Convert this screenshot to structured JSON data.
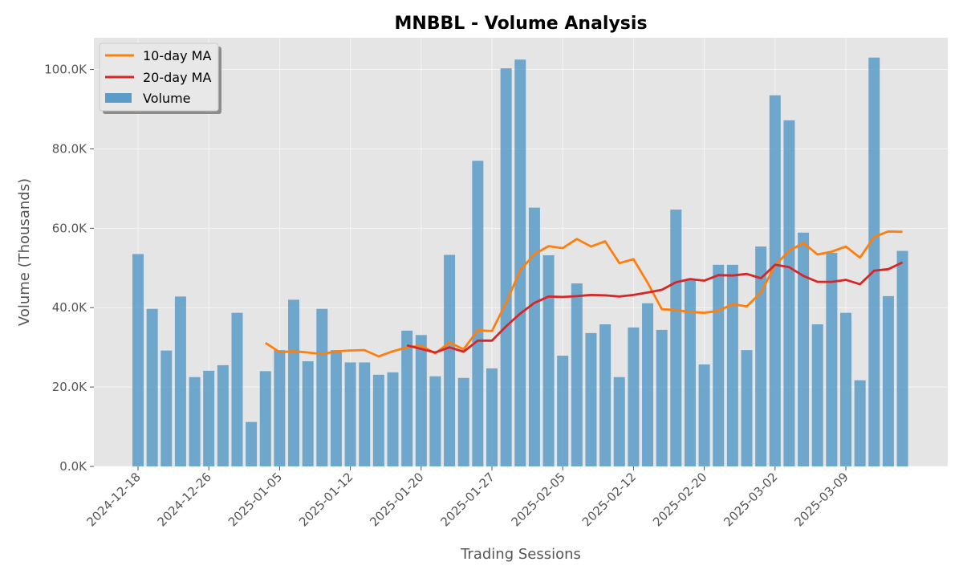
{
  "chart_data": {
    "type": "bar",
    "title": "MNBBL - Volume Analysis",
    "xlabel": "Trading Sessions",
    "ylabel": "Volume (Thousands)",
    "ylim": [
      0,
      108
    ],
    "y_ticks": [
      0,
      20,
      40,
      60,
      80,
      100
    ],
    "y_tick_labels": [
      "0.0K",
      "20.0K",
      "40.0K",
      "60.0K",
      "80.0K",
      "100.0K"
    ],
    "x_ticks": [
      {
        "index": 0,
        "label": "2024-12-18"
      },
      {
        "index": 5,
        "label": "2024-12-26"
      },
      {
        "index": 10,
        "label": "2025-01-05"
      },
      {
        "index": 15,
        "label": "2025-01-12"
      },
      {
        "index": 20,
        "label": "2025-01-20"
      },
      {
        "index": 25,
        "label": "2025-01-27"
      },
      {
        "index": 30,
        "label": "2025-02-05"
      },
      {
        "index": 35,
        "label": "2025-02-12"
      },
      {
        "index": 40,
        "label": "2025-02-20"
      },
      {
        "index": 45,
        "label": "2025-03-02"
      },
      {
        "index": 50,
        "label": "2025-03-09"
      }
    ],
    "grid": true,
    "legend": "top-left",
    "series": [
      {
        "name": "Volume",
        "kind": "bar",
        "color": "#5b9bc8",
        "values": [
          53.5,
          39.7,
          29.2,
          42.8,
          22.5,
          24.1,
          25.5,
          38.7,
          11.2,
          24.0,
          29.3,
          42.0,
          26.5,
          39.7,
          29.3,
          26.2,
          26.2,
          23.1,
          23.7,
          34.2,
          33.1,
          22.7,
          53.3,
          22.3,
          77.0,
          24.7,
          100.3,
          102.5,
          65.2,
          53.2,
          27.9,
          46.1,
          33.6,
          35.8,
          22.5,
          35.0,
          41.1,
          34.4,
          64.7,
          47.0,
          25.7,
          50.8,
          50.8,
          29.3,
          55.4,
          93.5,
          87.2,
          58.9,
          35.8,
          53.8,
          38.7,
          21.7,
          103.0,
          42.9,
          54.3
        ]
      },
      {
        "name": "10-day MA",
        "kind": "line",
        "color": "#ff7f0e",
        "values": [
          null,
          null,
          null,
          null,
          null,
          null,
          null,
          null,
          null,
          31.1,
          28.8,
          29.0,
          28.7,
          28.3,
          29.0,
          29.2,
          29.3,
          27.7,
          29.0,
          30.0,
          30.4,
          28.5,
          31.2,
          29.5,
          34.3,
          34.1,
          41.2,
          49.4,
          53.5,
          55.5,
          55.0,
          57.3,
          55.4,
          56.7,
          51.2,
          52.2,
          46.3,
          39.6,
          39.4,
          38.9,
          38.7,
          39.2,
          40.9,
          40.3,
          43.8,
          50.7,
          54.3,
          56.3,
          53.4,
          54.1,
          55.4,
          52.6,
          57.8,
          59.2,
          59.1
        ]
      },
      {
        "name": "20-day MA",
        "kind": "line",
        "color": "#d62728",
        "values": [
          null,
          null,
          null,
          null,
          null,
          null,
          null,
          null,
          null,
          null,
          null,
          null,
          null,
          null,
          null,
          null,
          null,
          null,
          null,
          30.5,
          29.6,
          28.7,
          30.0,
          28.9,
          31.7,
          31.7,
          35.3,
          38.5,
          41.2,
          42.8,
          42.7,
          42.9,
          43.2,
          43.1,
          42.8,
          43.2,
          43.8,
          44.5,
          46.4,
          47.2,
          46.8,
          48.2,
          48.1,
          48.5,
          47.4,
          50.8,
          50.2,
          48.0,
          46.5,
          46.5,
          47.0,
          45.9,
          49.3,
          49.7,
          51.4
        ]
      }
    ]
  }
}
